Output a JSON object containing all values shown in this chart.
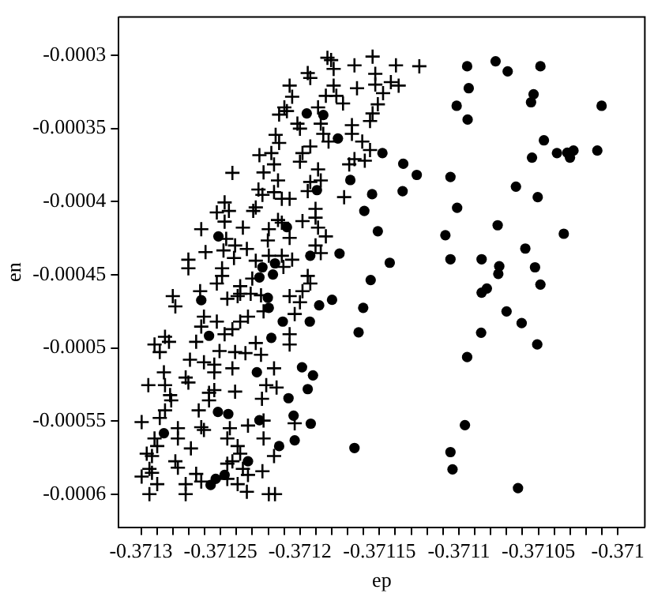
{
  "chart_data": {
    "type": "scatter",
    "xlabel": "ep",
    "ylabel": "en",
    "xlim": [
      -0.371314,
      -0.370983
    ],
    "ylim": [
      -0.0006224,
      -0.000274
    ],
    "xticks": [
      -0.3713,
      {
        "value": -0.37129,
        "label": null
      },
      {
        "value": -0.37128,
        "label": null
      },
      {
        "value": -0.37127,
        "label": null
      },
      {
        "value": -0.37126,
        "label": null
      },
      -0.37125,
      {
        "value": -0.37124,
        "label": null
      },
      {
        "value": -0.37123,
        "label": null
      },
      {
        "value": -0.37122,
        "label": null
      },
      {
        "value": -0.37121,
        "label": null
      },
      -0.3712,
      {
        "value": -0.37119,
        "label": null
      },
      {
        "value": -0.37118,
        "label": null
      },
      {
        "value": -0.37117,
        "label": null
      },
      {
        "value": -0.37116,
        "label": null
      },
      -0.37115,
      {
        "value": -0.37114,
        "label": null
      },
      {
        "value": -0.37113,
        "label": null
      },
      {
        "value": -0.37112,
        "label": null
      },
      {
        "value": -0.37111,
        "label": null
      },
      -0.3711,
      {
        "value": -0.37109,
        "label": null
      },
      {
        "value": -0.37108,
        "label": null
      },
      {
        "value": -0.37107,
        "label": null
      },
      {
        "value": -0.37106,
        "label": null
      },
      -0.37105,
      {
        "value": -0.37104,
        "label": null
      },
      {
        "value": -0.37103,
        "label": null
      },
      {
        "value": -0.37102,
        "label": null
      },
      {
        "value": -0.37101,
        "label": null
      },
      -0.371
    ],
    "yticks": [
      -0.0003,
      -0.00035,
      -0.0004,
      -0.00045,
      -0.0005,
      -0.00055,
      -0.0006
    ],
    "grid": false,
    "legend": false,
    "series": [
      {
        "color": "#000000",
        "marker": "cross",
        "x": [
          -0.3712065,
          -0.3712049,
          -0.3712098,
          -0.3712131,
          -0.3712153,
          -0.3712131,
          -0.371218,
          -0.3712255,
          -0.3712163,
          -0.3712229,
          -0.3712425,
          -0.3712138,
          -0.3712261,
          -0.3712236,
          -0.3712163,
          -0.3712114,
          -0.3712065,
          -0.3712474,
          -0.3712523,
          -0.3712447,
          -0.3712278,
          -0.3712294,
          -0.3712474,
          -0.3712359,
          -0.3712621,
          -0.3712138,
          -0.3712114,
          -0.3712196,
          -0.3712065,
          -0.3712464,
          -0.3712408,
          -0.3712481,
          -0.3712334,
          -0.3712202,
          -0.3712594,
          -0.3712415,
          -0.3712702,
          -0.3712702,
          -0.3712278,
          -0.3712196,
          -0.3712114,
          -0.3712049,
          -0.371249,
          -0.371249,
          -0.37123,
          -0.3712523,
          -0.3712104,
          -0.3712376,
          -0.3712376,
          -0.3712628,
          -0.37128,
          -0.3712457,
          -0.371231,
          -0.3712245,
          -0.3712065,
          -0.3712784,
          -0.3712604,
          -0.3712621,
          -0.3712523,
          -0.3712392,
          -0.3712229,
          -0.3712327,
          -0.3712376,
          -0.3712425,
          -0.3712474,
          -0.3712653,
          -0.3712849,
          -0.3712915,
          -0.3712824,
          -0.3712882,
          -0.3712506,
          -0.3712408,
          -0.3712343,
          -0.3712278,
          -0.3712245,
          -0.3712065,
          -0.3712692,
          -0.3712604,
          -0.3712539,
          -0.3712425,
          -0.3712163,
          -0.3712856,
          -0.3712954,
          -0.3712849,
          -0.3712719,
          -0.3712702,
          -0.3712539,
          -0.3712408,
          -0.3712212,
          -0.3712147,
          -0.3712817,
          -0.371281,
          -0.3712572,
          -0.3712572,
          -0.3712539,
          -0.3712239,
          -0.3712849,
          -0.3712637,
          -0.3712882,
          -0.3712996,
          -0.3712768,
          -0.3712621,
          -0.3712441,
          -0.3712327,
          -0.3712229,
          -0.3712915,
          -0.3712768,
          -0.3712604,
          -0.3712457,
          -0.3712229,
          -0.3712033,
          -0.3712964,
          -0.3712931,
          -0.3712898,
          -0.3712686,
          -0.3712392,
          -0.3712376,
          -0.3712163,
          -0.3712784,
          -0.3712768,
          -0.3712947,
          -0.3712931,
          -0.3712457,
          -0.3712425,
          -0.3712359,
          -0.3712236,
          -0.3712653,
          -0.3712996,
          -0.3712898,
          -0.3712719,
          -0.3712621,
          -0.3712457,
          -0.3712392,
          -0.3712327,
          -0.3712947,
          -0.3712719,
          -0.3712334,
          -0.3712196,
          -0.3712157,
          -0.3711827,
          -0.3711804,
          -0.3711788,
          -0.3711657,
          -0.3711543,
          -0.3711396,
          -0.3711249,
          -0.3711951,
          -0.3711935,
          -0.3711788,
          -0.3711641,
          -0.3711526,
          -0.3711526,
          -0.3711428,
          -0.3711379,
          -0.3711477,
          -0.3711837,
          -0.3711771,
          -0.3711729,
          -0.371151,
          -0.3711886,
          -0.3712082,
          -0.3711543,
          -0.3711559,
          -0.3712016,
          -0.3712,
          -0.3711869,
          -0.3711853,
          -0.371182,
          -0.3711673,
          -0.3711673,
          -0.3711608,
          -0.3711935,
          -0.3711984,
          -0.3711559,
          -0.3712,
          -0.3711657,
          -0.3711592,
          -0.371169,
          -0.3711886,
          -0.3711935,
          -0.3711869,
          -0.3711951,
          -0.3711722,
          -0.3711902,
          -0.3711902,
          -0.3711984,
          -0.3711886,
          -0.3711837,
          -0.3711902,
          -0.3711869,
          -0.3711951,
          -0.3711935,
          -0.3711984,
          -0.3712,
          -0.3712033,
          -0.3712065
        ],
        "values": [
          -0.0003208,
          -0.0003284,
          -0.0003357,
          -0.0003406,
          -0.0003544,
          -0.00036,
          -0.0003669,
          -0.0003683,
          -0.0003746,
          -0.0003801,
          -0.0003804,
          -0.0003856,
          -0.0003918,
          -0.0003954,
          -0.0003936,
          -0.0003981,
          -0.0003981,
          -0.0004006,
          -0.0004074,
          -0.0004064,
          -0.000404,
          -0.0004064,
          -0.0004137,
          -0.0004178,
          -0.0004189,
          -0.0004126,
          -0.0004144,
          -0.0004189,
          -0.0004248,
          -0.0004255,
          -0.00043,
          -0.0004334,
          -0.0004324,
          -0.0004266,
          -0.0004345,
          -0.0004386,
          -0.0004397,
          -0.0004456,
          -0.0004404,
          -0.000437,
          -0.000437,
          -0.0004397,
          -0.0004456,
          -0.0004508,
          -0.0004526,
          -0.000456,
          -0.0004446,
          -0.0004578,
          -0.000463,
          -0.0004612,
          -0.0004646,
          -0.0004664,
          -0.000463,
          -0.000464,
          -0.0004646,
          -0.0004716,
          -0.0004786,
          -0.0004854,
          -0.000482,
          -0.0004646,
          -0.000475,
          -0.0004786,
          -0.000482,
          -0.0004872,
          -0.0004906,
          -0.0004958,
          -0.0004924,
          -0.0004976,
          -0.0004958,
          -0.0005028,
          -0.0005021,
          -0.0005028,
          -0.0005035,
          -0.0004966,
          -0.0005046,
          -0.0004976,
          -0.000508,
          -0.0005098,
          -0.0005114,
          -0.0005139,
          -0.0005139,
          -0.0005166,
          -0.0005254,
          -0.0005254,
          -0.0005202,
          -0.0005236,
          -0.0005166,
          -0.0005298,
          -0.0005254,
          -0.000527,
          -0.0005322,
          -0.0005358,
          -0.0005306,
          -0.0005358,
          -0.0005288,
          -0.0005347,
          -0.0005426,
          -0.0005426,
          -0.0005478,
          -0.0005506,
          -0.0005548,
          -0.0005541,
          -0.0005548,
          -0.000553,
          -0.0005496,
          -0.0005618,
          -0.0005618,
          -0.000556,
          -0.0005618,
          -0.0005618,
          -0.0005514,
          -0.0005722,
          -0.0005738,
          -0.000567,
          -0.0005686,
          -0.000567,
          -0.0005722,
          -0.0005738,
          -0.0005774,
          -0.0005818,
          -0.0005826,
          -0.0005853,
          -0.000579,
          -0.0005774,
          -0.0005826,
          -0.0005842,
          -0.000586,
          -0.0005878,
          -0.000593,
          -0.000593,
          -0.0005912,
          -0.0005894,
          -0.000593,
          -0.0005867,
          -0.0005998,
          -0.0005998,
          -0.0005982,
          -0.0005998,
          -0.0005998,
          -0.0003018,
          -0.0003034,
          -0.0003094,
          -0.000307,
          -0.000301,
          -0.000307,
          -0.0003076,
          -0.0003122,
          -0.0003156,
          -0.0003208,
          -0.0003226,
          -0.0003128,
          -0.0003201,
          -0.0003184,
          -0.0003208,
          -0.000326,
          -0.0003278,
          -0.0003278,
          -0.000333,
          -0.0003336,
          -0.0003357,
          -0.0003382,
          -0.0003398,
          -0.000345,
          -0.0003468,
          -0.0003502,
          -0.0003468,
          -0.0003538,
          -0.000359,
          -0.0003478,
          -0.0003538,
          -0.000359,
          -0.0003624,
          -0.0003669,
          -0.0003648,
          -0.0003728,
          -0.000371,
          -0.0003721,
          -0.0003746,
          -0.000378,
          -0.0003866,
          -0.0003856,
          -0.0003929,
          -0.000397,
          -0.000405,
          -0.000411,
          -0.0004134,
          -0.0004178,
          -0.0004238,
          -0.00043,
          -0.0004352,
          -0.0004508,
          -0.000456,
          -0.0004612,
          -0.0004688,
          -0.0004768,
          -0.0004906
        ]
      },
      {
        "color": "#000000",
        "marker": "circle",
        "x": [
          -0.3710948,
          -0.3710769,
          -0.3710693,
          -0.3710487,
          -0.3710938,
          -0.3711014,
          -0.3710945,
          -0.371053,
          -0.3710546,
          -0.3710102,
          -0.3710465,
          -0.371054,
          -0.3710383,
          -0.3710318,
          -0.3710279,
          -0.3710301,
          -0.3710129,
          -0.3711053,
          -0.3710641,
          -0.3711011,
          -0.3710504,
          -0.3710756,
          -0.371034,
          -0.3710582,
          -0.3711053,
          -0.3710857,
          -0.3710746,
          -0.3710752,
          -0.3710521,
          -0.3710487,
          -0.3710857,
          -0.3710824,
          -0.37107,
          -0.3710605,
          -0.371086,
          -0.3710507,
          -0.3710948,
          -0.3710962,
          -0.3711053,
          -0.371104,
          -0.3710628,
          -0.3711879,
          -0.3711798,
          -0.3711602,
          -0.3711938,
          -0.3711631,
          -0.3711987,
          -0.3711918,
          -0.3711951,
          -0.3712072,
          -0.371204,
          -0.3711932,
          -0.3712033,
          -0.3711657,
          -0.3711957,
          -0.3711853,
          -0.3711761,
          -0.3711481,
          -0.371135,
          -0.3711265,
          -0.3711683,
          -0.3711893,
          -0.3711546,
          -0.3711354,
          -0.3711595,
          -0.3712082,
          -0.371151,
          -0.3711085,
          -0.3711935,
          -0.3711751,
          -0.3711435,
          -0.3711555,
          -0.3712513,
          -0.3712236,
          -0.3712157,
          -0.3712255,
          -0.371217,
          -0.3712621,
          -0.3712202,
          -0.3712196,
          -0.3712572,
          -0.3712108,
          -0.371218,
          -0.3712271,
          -0.3712516,
          -0.3712451,
          -0.3712255,
          -0.3712856,
          -0.3712131,
          -0.3712327,
          -0.3712474,
          -0.371253,
          -0.3712562
        ],
        "values": [
          -0.0003076,
          -0.0003042,
          -0.0003111,
          -0.0003076,
          -0.0003226,
          -0.0003346,
          -0.000344,
          -0.0003267,
          -0.0003322,
          -0.0003346,
          -0.0003582,
          -0.00037,
          -0.0003669,
          -0.0003666,
          -0.0003652,
          -0.00037,
          -0.0003652,
          -0.0003832,
          -0.0003898,
          -0.0004043,
          -0.000397,
          -0.0004162,
          -0.000422,
          -0.0004321,
          -0.0004394,
          -0.0004394,
          -0.0004442,
          -0.0004494,
          -0.0004449,
          -0.0004567,
          -0.0004622,
          -0.0004594,
          -0.000475,
          -0.000483,
          -0.0004896,
          -0.0004976,
          -0.0005062,
          -0.0005527,
          -0.0005711,
          -0.0005829,
          -0.0005957,
          -0.0004709,
          -0.0004671,
          -0.0004726,
          -0.000482,
          -0.0004893,
          -0.0005132,
          -0.0005187,
          -0.0005281,
          -0.0005343,
          -0.0005462,
          -0.0005517,
          -0.0005631,
          -0.0005683,
          -0.0003398,
          -0.0003409,
          -0.0003569,
          -0.0003669,
          -0.0003742,
          -0.0003818,
          -0.0003853,
          -0.0003922,
          -0.000395,
          -0.0003929,
          -0.0004064,
          -0.0004175,
          -0.0004203,
          -0.000423,
          -0.000437,
          -0.0004355,
          -0.0004418,
          -0.0004536,
          -0.0004238,
          -0.0004449,
          -0.0004422,
          -0.0004518,
          -0.0004498,
          -0.0004674,
          -0.0004657,
          -0.0004726,
          -0.0004917,
          -0.000482,
          -0.0004931,
          -0.0005166,
          -0.0005437,
          -0.0005451,
          -0.0005493,
          -0.0005582,
          -0.000567,
          -0.0005774,
          -0.0005867,
          -0.0005894,
          -0.0005936
        ]
      }
    ]
  }
}
